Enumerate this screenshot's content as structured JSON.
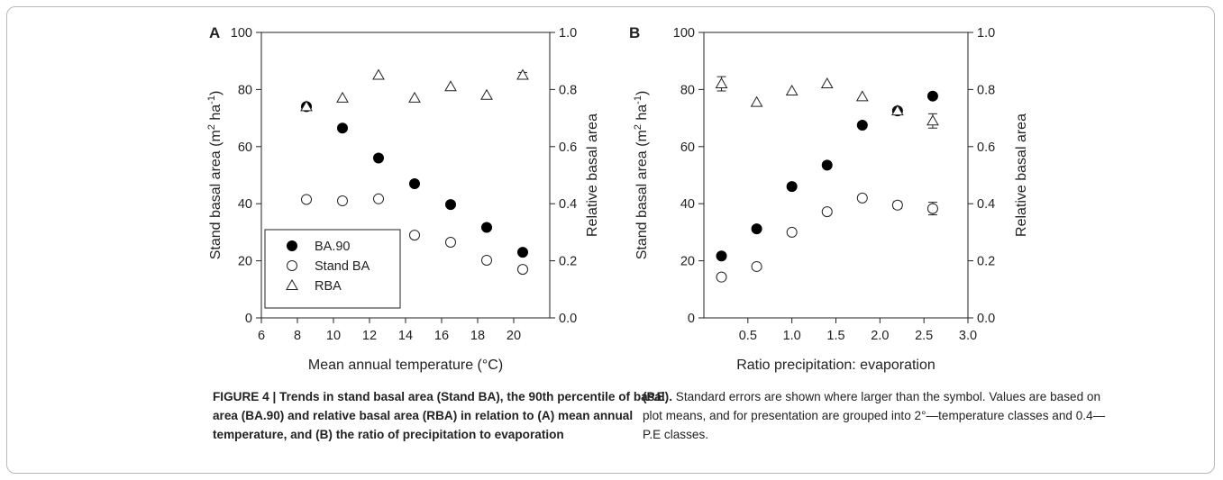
{
  "chart_data": [
    {
      "type": "scatter",
      "panel_label": "A",
      "xlabel": "Mean annual temperature (°C)",
      "ylabel": "Stand basal area (m² ha⁻¹)",
      "ylabel_parts": [
        "Stand basal area (m",
        "2",
        " ha",
        "-1",
        ")"
      ],
      "y2label": "Relative basal area",
      "xlim": [
        6,
        22
      ],
      "ylim": [
        0,
        100
      ],
      "y2lim": [
        0,
        1.0
      ],
      "x_ticks": [
        "6",
        "8",
        "10",
        "12",
        "14",
        "16",
        "18",
        "20"
      ],
      "y_ticks": [
        "0",
        "20",
        "40",
        "60",
        "80",
        "100"
      ],
      "y2_ticks": [
        "0.0",
        "0.2",
        "0.4",
        "0.6",
        "0.8",
        "1.0"
      ],
      "legend": {
        "placement": "bottom-left",
        "entries": [
          {
            "label": "BA.90",
            "marker": "filled-circle"
          },
          {
            "label": "Stand BA",
            "marker": "open-circle"
          },
          {
            "label": "RBA",
            "marker": "open-triangle"
          }
        ]
      },
      "series": [
        {
          "name": "BA.90",
          "marker": "filled-circle",
          "axis": "left",
          "points": [
            [
              8.5,
              74
            ],
            [
              10.5,
              66.5
            ],
            [
              12.5,
              56
            ],
            [
              14.5,
              47
            ],
            [
              16.5,
              39.7
            ],
            [
              18.5,
              31.7
            ],
            [
              20.5,
              23
            ]
          ]
        },
        {
          "name": "Stand BA",
          "marker": "open-circle",
          "axis": "left",
          "points": [
            [
              8.5,
              41.5
            ],
            [
              10.5,
              41
            ],
            [
              12.5,
              41.7
            ],
            [
              14.5,
              29
            ],
            [
              16.5,
              26.5
            ],
            [
              18.5,
              20.2
            ],
            [
              20.5,
              17
            ]
          ]
        },
        {
          "name": "RBA",
          "marker": "open-triangle",
          "axis": "right",
          "points": [
            [
              8.5,
              0.74
            ],
            [
              10.5,
              0.77
            ],
            [
              12.5,
              0.85
            ],
            [
              14.5,
              0.77
            ],
            [
              16.5,
              0.81
            ],
            [
              18.5,
              0.78
            ],
            [
              20.5,
              0.85
            ]
          ],
          "errors": [
            0,
            0,
            0,
            0,
            0,
            0,
            0.01
          ]
        }
      ]
    },
    {
      "type": "scatter",
      "panel_label": "B",
      "xlabel": "Ratio precipitation: evaporation",
      "ylabel": "Stand basal area (m² ha⁻¹)",
      "ylabel_parts": [
        "Stand basal area (m",
        "2",
        " ha",
        "-1",
        ")"
      ],
      "y2label": "Relative basal area",
      "xlim": [
        0,
        3.0
      ],
      "ylim": [
        0,
        100
      ],
      "y2lim": [
        0,
        1.0
      ],
      "x_ticks": [
        "0.5",
        "1.0",
        "1.5",
        "2.0",
        "2.5",
        "3.0"
      ],
      "y_ticks": [
        "0",
        "20",
        "40",
        "60",
        "80",
        "100"
      ],
      "y2_ticks": [
        "0.0",
        "0.2",
        "0.4",
        "0.6",
        "0.8",
        "1.0"
      ],
      "series": [
        {
          "name": "BA.90",
          "marker": "filled-circle",
          "axis": "left",
          "points": [
            [
              0.2,
              21.7
            ],
            [
              0.6,
              31.2
            ],
            [
              1.0,
              46
            ],
            [
              1.4,
              53.5
            ],
            [
              1.8,
              67.5
            ],
            [
              2.2,
              72.5
            ],
            [
              2.6,
              77.7
            ]
          ]
        },
        {
          "name": "Stand BA",
          "marker": "open-circle",
          "axis": "left",
          "points": [
            [
              0.2,
              14.3
            ],
            [
              0.6,
              18
            ],
            [
              1.0,
              30
            ],
            [
              1.4,
              37.2
            ],
            [
              1.8,
              42
            ],
            [
              2.2,
              39.5
            ],
            [
              2.6,
              38.3
            ]
          ],
          "errors": [
            0,
            0,
            0,
            0,
            0,
            1.2,
            2.2
          ]
        },
        {
          "name": "RBA",
          "marker": "open-triangle",
          "axis": "right",
          "points": [
            [
              0.2,
              0.82
            ],
            [
              0.6,
              0.755
            ],
            [
              1.0,
              0.795
            ],
            [
              1.4,
              0.82
            ],
            [
              1.8,
              0.775
            ],
            [
              2.2,
              0.725
            ],
            [
              2.6,
              0.69
            ]
          ],
          "errors": [
            0.025,
            0,
            0,
            0,
            0,
            0.01,
            0.025
          ]
        }
      ]
    }
  ],
  "caption": {
    "left_bold": "FIGURE 4 | Trends in stand basal area (Stand BA), the 90th percentile of basal area (BA.90) and relative basal area (RBA) in relation to (A) mean annual temperature, and (B) the ratio of precipitation to evaporation",
    "right_bold": "(P.E).",
    "right_text": " Standard errors are shown where larger than the symbol. Values are based on plot means, and for presentation are grouped into 2°—temperature classes and 0.4—P.E classes."
  }
}
